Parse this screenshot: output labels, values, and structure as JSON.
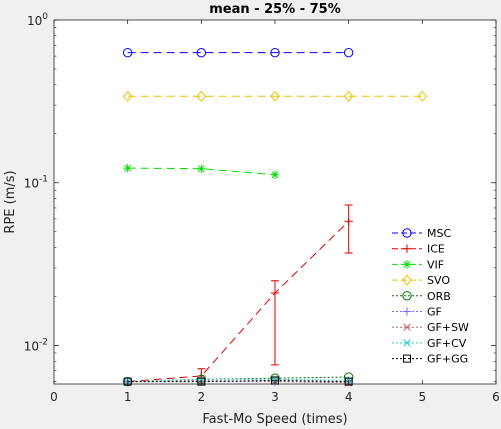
{
  "chart_data": {
    "type": "line",
    "title": "mean - 25% - 75%",
    "xlabel": "Fast-Mo Speed (times)",
    "ylabel": "RPE (m/s)",
    "xlim": [
      0,
      6
    ],
    "ylim": [
      0.0058,
      1
    ],
    "yscale": "log",
    "grid": false,
    "legend_position": "lower-right",
    "x_ticks": [
      "0",
      "1",
      "2",
      "3",
      "4",
      "5",
      "6"
    ],
    "y_ticks": [
      {
        "value": 1,
        "base": "10",
        "exp": "0"
      },
      {
        "value": 0.1,
        "base": "10",
        "exp": "-1"
      },
      {
        "value": 0.01,
        "base": "10",
        "exp": "-2"
      }
    ],
    "series": [
      {
        "name": "MSC",
        "color": "#0000ff",
        "dash": "8,5",
        "marker": "circle",
        "x": [
          1,
          2,
          3,
          4
        ],
        "y": [
          0.63,
          0.63,
          0.63,
          0.63
        ]
      },
      {
        "name": "ICE",
        "color": "#e00000",
        "dash": "8,5",
        "marker": "plus",
        "x": [
          1,
          2,
          3,
          4
        ],
        "y": [
          0.006,
          0.0065,
          0.021,
          0.058
        ],
        "err_low": [
          0.006,
          0.006,
          0.0076,
          0.037
        ],
        "err_high": [
          0.006,
          0.0072,
          0.025,
          0.073
        ]
      },
      {
        "name": "VIF",
        "color": "#00e000",
        "dash": "8,5",
        "marker": "asterisk",
        "x": [
          1,
          2,
          3
        ],
        "y": [
          0.123,
          0.122,
          0.112
        ]
      },
      {
        "name": "SVO",
        "color": "#f0c000",
        "dash": "8,5",
        "marker": "diamond",
        "x": [
          1,
          2,
          3,
          4,
          5
        ],
        "y": [
          0.34,
          0.34,
          0.34,
          0.34,
          0.34
        ]
      },
      {
        "name": "ORB",
        "color": "#007700",
        "dash": "2,2",
        "marker": "circle",
        "x": [
          1,
          2,
          3,
          4
        ],
        "y": [
          0.006,
          0.0062,
          0.0063,
          0.0064
        ]
      },
      {
        "name": "GF",
        "color": "#7070ff",
        "dash": "2,2",
        "marker": "plus",
        "x": [
          1,
          2,
          3,
          4
        ],
        "y": [
          0.006,
          0.006,
          0.006,
          0.006
        ]
      },
      {
        "name": "GF+SW",
        "color": "#c06060",
        "dash": "2,2",
        "marker": "x",
        "x": [
          1,
          2,
          3,
          4
        ],
        "y": [
          0.006,
          0.0061,
          0.006,
          0.0059
        ]
      },
      {
        "name": "GF+CV",
        "color": "#20d0d0",
        "dash": "2,2",
        "marker": "x",
        "x": [
          1,
          2,
          3,
          4
        ],
        "y": [
          0.006,
          0.0062,
          0.0062,
          0.0061
        ]
      },
      {
        "name": "GF+GG",
        "color": "#000000",
        "dash": "2,2",
        "marker": "square",
        "x": [
          1,
          2,
          3,
          4
        ],
        "y": [
          0.006,
          0.006,
          0.0061,
          0.006
        ]
      }
    ]
  }
}
